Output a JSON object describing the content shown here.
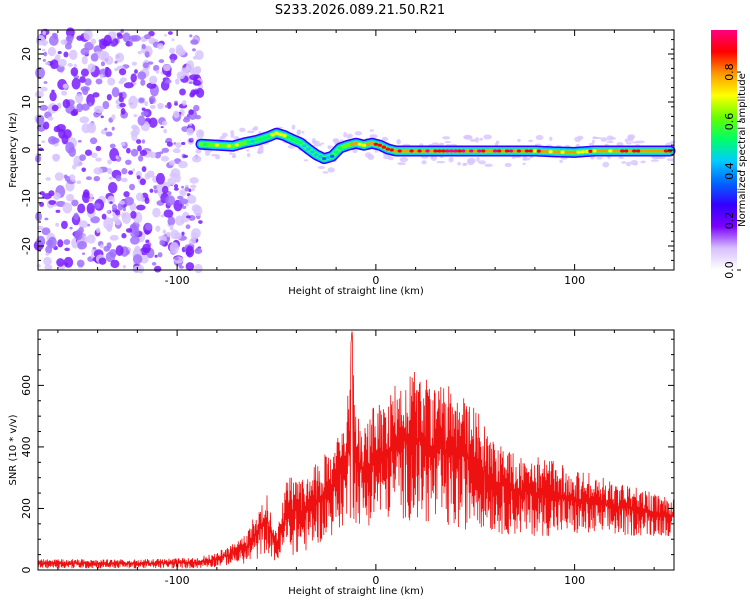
{
  "title": "S233.2026.089.21.50.R21",
  "chart_data": [
    {
      "type": "heatmap",
      "name": "spectrogram",
      "xlabel": "Height of straight line (km)",
      "ylabel": "Frequency (Hz)",
      "xlim": [
        -170,
        150
      ],
      "ylim": [
        -25,
        25
      ],
      "xticks": [
        -100,
        0,
        100
      ],
      "yticks": [
        20,
        10,
        0,
        -10,
        -20
      ],
      "xtick_labels": [
        "-100",
        "0",
        "100"
      ],
      "ytick_labels": [
        "20",
        "10",
        "0",
        "-10",
        "-20"
      ],
      "ridge": {
        "x": [
          -88,
          -80,
          -72,
          -66,
          -60,
          -54,
          -50,
          -46,
          -42,
          -38,
          -34,
          -30,
          -26,
          -22,
          -18,
          -14,
          -10,
          -6,
          -2,
          2,
          6,
          10,
          20,
          40,
          60,
          80,
          90,
          100,
          110,
          120,
          130,
          140,
          148
        ],
        "y": [
          1.2,
          1.0,
          0.8,
          1.5,
          2.0,
          2.8,
          3.5,
          3.0,
          2.2,
          1.5,
          0.2,
          -1.0,
          -1.8,
          -1.3,
          0.4,
          1.0,
          1.4,
          1.0,
          1.4,
          1.0,
          0.2,
          -0.2,
          -0.2,
          -0.2,
          -0.2,
          -0.2,
          -0.4,
          -0.5,
          -0.2,
          -0.2,
          -0.2,
          -0.2,
          -0.2
        ],
        "amplitude": [
          0.6,
          0.7,
          0.7,
          0.6,
          0.55,
          0.6,
          0.8,
          0.7,
          0.65,
          0.55,
          0.5,
          0.45,
          0.4,
          0.45,
          0.6,
          0.75,
          0.85,
          0.8,
          0.85,
          0.9,
          0.85,
          0.9,
          0.95,
          0.95,
          0.95,
          0.9,
          0.85,
          0.8,
          0.85,
          0.9,
          0.9,
          0.9,
          0.9
        ]
      },
      "noise_region_x": [
        -170,
        -88
      ],
      "colorbar": {
        "label": "Normalized spectral amplitude",
        "ticks": [
          0.0,
          0.2,
          0.4,
          0.6,
          0.8
        ],
        "tick_labels": [
          "0.0",
          "0.2",
          "0.4",
          "0.6",
          "0.8"
        ],
        "range": [
          0,
          0.97
        ],
        "colors": [
          "#ffffff",
          "#d8bfff",
          "#7a00ff",
          "#3300ff",
          "#0066ff",
          "#00ccff",
          "#00ff66",
          "#66ff00",
          "#ffff00",
          "#ff9900",
          "#ff0000",
          "#ff0080"
        ]
      }
    },
    {
      "type": "line",
      "name": "snr",
      "xlabel": "Height of straight line (km)",
      "ylabel": "SNR (10 * v/v)",
      "xlim": [
        -170,
        150
      ],
      "ylim": [
        0,
        780
      ],
      "xticks": [
        -100,
        0,
        100
      ],
      "yticks": [
        0,
        200,
        400,
        600
      ],
      "xtick_labels": [
        "-100",
        "0",
        "100"
      ],
      "ytick_labels": [
        "0",
        "200",
        "400",
        "600"
      ],
      "color": "#ee1111",
      "envelope": {
        "x": [
          -170,
          -120,
          -90,
          -80,
          -70,
          -65,
          -60,
          -55,
          -50,
          -45,
          -40,
          -35,
          -30,
          -25,
          -20,
          -15,
          -12,
          -10,
          -5,
          0,
          5,
          10,
          15,
          20,
          25,
          30,
          35,
          40,
          45,
          50,
          55,
          60,
          70,
          80,
          90,
          100,
          110,
          120,
          130,
          140,
          150
        ],
        "upper": [
          35,
          35,
          40,
          60,
          90,
          120,
          200,
          250,
          120,
          290,
          320,
          300,
          350,
          380,
          420,
          520,
          780,
          540,
          460,
          560,
          530,
          620,
          640,
          650,
          620,
          610,
          600,
          590,
          570,
          530,
          470,
          420,
          380,
          370,
          360,
          330,
          310,
          290,
          270,
          250,
          230
        ],
        "lower": [
          5,
          5,
          5,
          10,
          20,
          20,
          30,
          60,
          20,
          60,
          40,
          60,
          80,
          100,
          120,
          150,
          160,
          150,
          140,
          150,
          160,
          180,
          160,
          160,
          150,
          140,
          130,
          120,
          130,
          150,
          130,
          120,
          110,
          110,
          110,
          110,
          110,
          110,
          110,
          110,
          110
        ]
      }
    }
  ]
}
